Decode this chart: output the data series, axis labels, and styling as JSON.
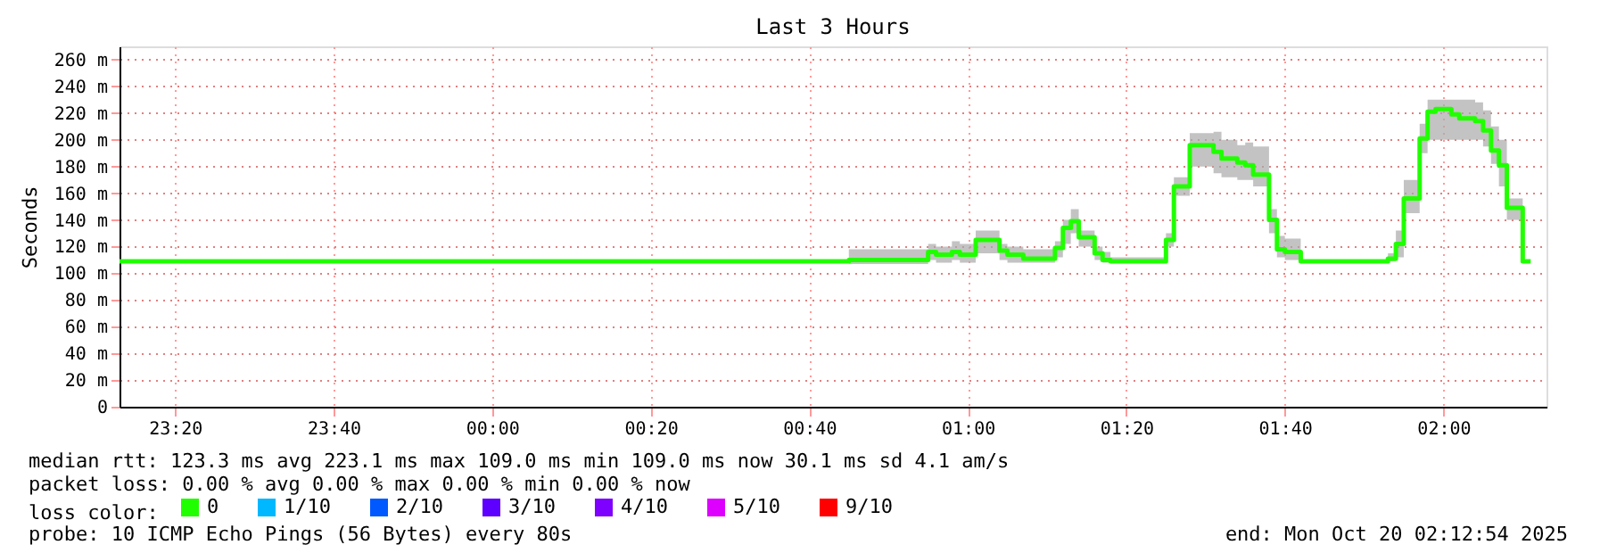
{
  "chart_data": {
    "type": "step",
    "title": "Last 3 Hours",
    "ylabel": "Seconds",
    "x": [
      "2025-10-19T23:13",
      "2025-10-20T00:45",
      "2025-10-20T00:55",
      "2025-10-20T00:56",
      "2025-10-20T00:58",
      "2025-10-20T00:59",
      "2025-10-20T01:01",
      "2025-10-20T01:04",
      "2025-10-20T01:05",
      "2025-10-20T01:07",
      "2025-10-20T01:11",
      "2025-10-20T01:12",
      "2025-10-20T01:13",
      "2025-10-20T01:14",
      "2025-10-20T01:16",
      "2025-10-20T01:17",
      "2025-10-20T01:18",
      "2025-10-20T01:25",
      "2025-10-20T01:26",
      "2025-10-20T01:28",
      "2025-10-20T01:31",
      "2025-10-20T01:32",
      "2025-10-20T01:34",
      "2025-10-20T01:35",
      "2025-10-20T01:36",
      "2025-10-20T01:38",
      "2025-10-20T01:39",
      "2025-10-20T01:40",
      "2025-10-20T01:42",
      "2025-10-20T01:53",
      "2025-10-20T01:54",
      "2025-10-20T01:55",
      "2025-10-20T01:57",
      "2025-10-20T01:58",
      "2025-10-20T01:59",
      "2025-10-20T02:01",
      "2025-10-20T02:02",
      "2025-10-20T02:04",
      "2025-10-20T02:05",
      "2025-10-20T02:06",
      "2025-10-20T02:07",
      "2025-10-20T02:08",
      "2025-10-20T02:10",
      "2025-10-20T02:11"
    ],
    "series": [
      {
        "name": "0",
        "color": "#20ff00",
        "values": [
          109,
          110,
          116,
          114,
          116,
          114,
          125,
          117,
          114,
          111,
          119,
          134,
          139,
          127,
          115,
          110,
          109,
          125,
          165,
          196,
          191,
          186,
          183,
          181,
          174,
          140,
          118,
          116,
          109,
          111,
          122,
          156,
          201,
          221,
          223,
          219,
          216,
          214,
          207,
          192,
          181,
          149,
          109,
          109
        ],
        "lower": [
          108,
          107,
          110,
          108,
          110,
          108,
          115,
          110,
          108,
          108,
          112,
          122,
          130,
          120,
          110,
          108,
          108,
          120,
          158,
          180,
          175,
          172,
          170,
          170,
          165,
          130,
          112,
          110,
          108,
          109,
          112,
          145,
          190,
          200,
          200,
          200,
          200,
          200,
          195,
          182,
          165,
          140,
          108,
          108
        ],
        "upper": [
          110,
          118,
          122,
          120,
          124,
          122,
          132,
          122,
          120,
          118,
          124,
          140,
          148,
          132,
          120,
          116,
          112,
          130,
          172,
          205,
          206,
          200,
          196,
          198,
          195,
          148,
          128,
          126,
          110,
          115,
          132,
          170,
          212,
          230,
          230,
          230,
          230,
          228,
          222,
          210,
          200,
          156,
          110,
          110
        ]
      },
      {
        "name": "1/10",
        "color": "#00b8ff",
        "values": [
          null,
          null,
          null,
          null,
          null,
          null,
          null,
          null,
          null,
          null,
          null,
          null,
          null,
          null,
          null,
          null,
          null,
          null,
          null,
          null,
          null,
          null,
          null,
          null,
          null,
          null,
          null,
          null,
          null,
          null,
          null,
          null,
          null,
          null,
          null,
          null,
          null,
          null,
          null,
          null,
          null,
          null,
          null,
          null
        ]
      },
      {
        "name": "2/10",
        "color": "#0059ff",
        "values": [
          null,
          null,
          null,
          null,
          null,
          null,
          null,
          null,
          null,
          null,
          null,
          null,
          null,
          null,
          null,
          null,
          null,
          null,
          null,
          null,
          null,
          null,
          null,
          null,
          null,
          null,
          null,
          null,
          null,
          null,
          null,
          null,
          null,
          null,
          null,
          null,
          null,
          null,
          null,
          null,
          null,
          null,
          null,
          null
        ]
      },
      {
        "name": "3/10",
        "color": "#5e00ff",
        "values": [
          null,
          null,
          null,
          null,
          null,
          null,
          null,
          null,
          null,
          null,
          null,
          null,
          null,
          null,
          null,
          null,
          null,
          null,
          null,
          null,
          null,
          null,
          null,
          null,
          null,
          null,
          null,
          null,
          null,
          null,
          null,
          null,
          null,
          null,
          null,
          null,
          null,
          null,
          null,
          null,
          null,
          null,
          null,
          null
        ]
      },
      {
        "name": "4/10",
        "color": "#7e00ff",
        "values": [
          null,
          null,
          null,
          null,
          null,
          null,
          null,
          null,
          null,
          null,
          null,
          null,
          null,
          null,
          null,
          null,
          null,
          null,
          null,
          null,
          null,
          null,
          null,
          null,
          null,
          null,
          null,
          null,
          null,
          null,
          null,
          null,
          null,
          null,
          null,
          null,
          null,
          null,
          null,
          null,
          null,
          null,
          null,
          null
        ]
      },
      {
        "name": "5/10",
        "color": "#dd00ff",
        "values": [
          null,
          null,
          null,
          null,
          null,
          null,
          null,
          null,
          null,
          null,
          null,
          null,
          null,
          null,
          null,
          null,
          null,
          null,
          null,
          null,
          null,
          null,
          null,
          null,
          null,
          null,
          null,
          null,
          null,
          null,
          null,
          null,
          null,
          null,
          null,
          null,
          null,
          null,
          null,
          null,
          null,
          null,
          null,
          null
        ]
      },
      {
        "name": "9/10",
        "color": "#ff0000",
        "values": [
          null,
          null,
          null,
          null,
          null,
          null,
          null,
          null,
          null,
          null,
          null,
          null,
          null,
          null,
          null,
          null,
          null,
          null,
          null,
          null,
          null,
          null,
          null,
          null,
          null,
          null,
          null,
          null,
          null,
          null,
          null,
          null,
          null,
          null,
          null,
          null,
          null,
          null,
          null,
          null,
          null,
          null,
          null,
          null
        ]
      }
    ],
    "legend_title": "loss color:",
    "legend": "bottom left",
    "xlim": [
      "2025-10-19T23:13",
      "2025-10-20T02:13"
    ],
    "xticks": [
      {
        "value": "2025-10-19T23:20",
        "label": "23:20"
      },
      {
        "value": "2025-10-19T23:40",
        "label": "23:40"
      },
      {
        "value": "2025-10-20T00:00",
        "label": "00:00"
      },
      {
        "value": "2025-10-20T00:20",
        "label": "00:20"
      },
      {
        "value": "2025-10-20T00:40",
        "label": "00:40"
      },
      {
        "value": "2025-10-20T01:00",
        "label": "01:00"
      },
      {
        "value": "2025-10-20T01:20",
        "label": "01:20"
      },
      {
        "value": "2025-10-20T01:40",
        "label": "01:40"
      },
      {
        "value": "2025-10-20T02:00",
        "label": "02:00"
      }
    ],
    "ylim": [
      0,
      270
    ],
    "yticks": [
      0,
      {
        "value": 20,
        "label": "20 m"
      },
      {
        "value": 40,
        "label": "40 m"
      },
      {
        "value": 60,
        "label": "60 m"
      },
      {
        "value": 80,
        "label": "80 m"
      },
      {
        "value": 100,
        "label": "100 m"
      },
      {
        "value": 120,
        "label": "120 m"
      },
      {
        "value": 140,
        "label": "140 m"
      },
      {
        "value": 160,
        "label": "160 m"
      },
      {
        "value": 180,
        "label": "180 m"
      },
      {
        "value": 200,
        "label": "200 m"
      },
      {
        "value": 220,
        "label": "220 m"
      },
      {
        "value": 240,
        "label": "240 m"
      },
      {
        "value": 260,
        "label": "260 m"
      }
    ],
    "grid": true,
    "line_style": "solid",
    "marker": "none",
    "annotations": [
      "median rtt:  123.3 ms avg  223.1 ms max  109.0 ms min  109.0 ms now  30.1 ms sd  4.1   am/s",
      "packet loss: 0.00 % avg  0.00 % max  0.00 % min  0.00 % now",
      "probe:       10 ICMP Echo Pings (56 Bytes) every 80s",
      "end: Mon Oct 20 02:12:54 2025"
    ]
  }
}
